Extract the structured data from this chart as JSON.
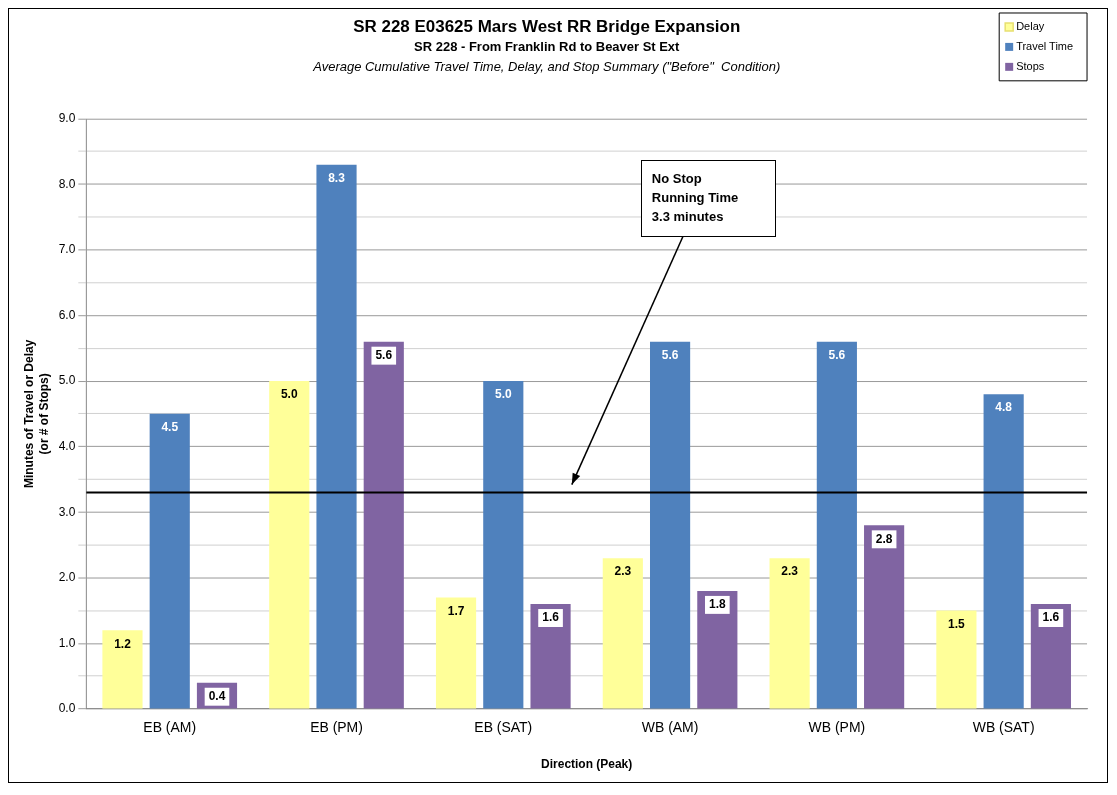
{
  "chart_data": {
    "type": "bar",
    "title": "SR 228 E03625 Mars West RR Bridge Expansion",
    "subtitle": "SR 228 - From Franklin Rd to Beaver St Ext",
    "annotations": [
      "Average Cumulative Travel Time, Delay, and Stop Summary (\"Before\"  Condition)"
    ],
    "xlabel": "Direction (Peak)",
    "ylabel": "Minutes of Travel or Delay\n(or # of Stops)",
    "categories": [
      "EB (AM)",
      "EB (PM)",
      "EB (SAT)",
      "WB (AM)",
      "WB (PM)",
      "WB (SAT)"
    ],
    "series": [
      {
        "name": "Delay",
        "color": "#ffff99",
        "values": [
          1.2,
          5.0,
          1.7,
          2.3,
          2.3,
          1.5
        ],
        "value_labels": [
          "1.2",
          "5.0",
          "1.7",
          "2.3",
          "2.3",
          "1.5"
        ]
      },
      {
        "name": "Travel Time",
        "color": "#4f81bd",
        "values": [
          4.5,
          8.3,
          5.0,
          5.6,
          5.6,
          4.8
        ],
        "value_labels": [
          "4.5",
          "8.3",
          "5.0",
          "5.6",
          "5.6",
          "4.8"
        ]
      },
      {
        "name": "Stops",
        "color": "#8064a2",
        "values": [
          0.4,
          5.6,
          1.6,
          1.8,
          2.8,
          1.6
        ],
        "value_labels": [
          "0.4",
          "5.6",
          "1.6",
          "1.8",
          "2.8",
          "1.6"
        ]
      }
    ],
    "ylim": [
      0,
      9
    ],
    "yticks": [
      {
        "value": 0,
        "label": "0.0"
      },
      {
        "value": 0.5,
        "label": null
      },
      {
        "value": 1,
        "label": "1.0"
      },
      {
        "value": 1.5,
        "label": null
      },
      {
        "value": 2,
        "label": "2.0"
      },
      {
        "value": 2.5,
        "label": null
      },
      {
        "value": 3,
        "label": "3.0"
      },
      {
        "value": 3.5,
        "label": null
      },
      {
        "value": 4,
        "label": "4.0"
      },
      {
        "value": 4.5,
        "label": null
      },
      {
        "value": 5,
        "label": "5.0"
      },
      {
        "value": 5.5,
        "label": null
      },
      {
        "value": 6,
        "label": "6.0"
      },
      {
        "value": 6.5,
        "label": null
      },
      {
        "value": 7,
        "label": "7.0"
      },
      {
        "value": 7.5,
        "label": null
      },
      {
        "value": 8,
        "label": "8.0"
      },
      {
        "value": 8.5,
        "label": null
      },
      {
        "value": 9,
        "label": "9.0"
      }
    ],
    "ref_lines": [
      {
        "axis": "y",
        "value": 3.3,
        "label": "No Stop\nRunning Time\n3.3 minutes",
        "color": "#000000"
      }
    ],
    "grid": "y",
    "legend": "top right"
  }
}
